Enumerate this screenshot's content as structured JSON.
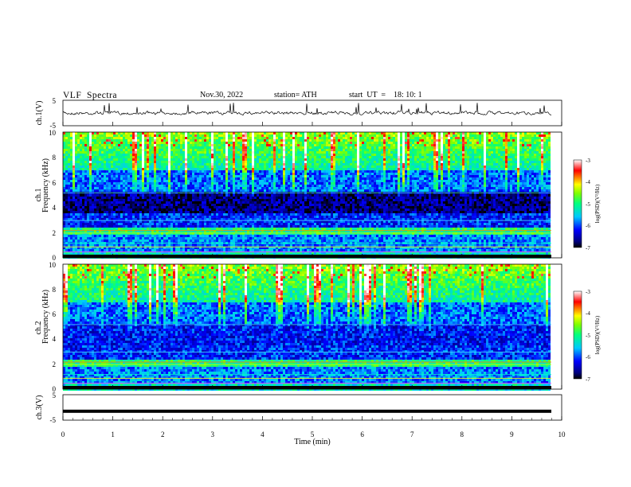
{
  "header": {
    "title": "VLF  Spectra",
    "date": "Nov.30, 2022",
    "station": "station= ATH",
    "start": "start  UT  =    18: 10: 1"
  },
  "chart_data": [
    {
      "type": "line",
      "name": "ch1-waveform",
      "ylabel": "ch.1(V)",
      "ylim": [
        -5,
        5
      ],
      "yticks": [
        "5",
        "-5"
      ],
      "xlim": [
        0,
        10
      ]
    },
    {
      "type": "heatmap",
      "name": "ch1-spectrogram",
      "ylabel_line1": "ch.1",
      "ylabel_line2": "Frequency (kHz)",
      "ylim": [
        0,
        10
      ],
      "yticks": [
        "0",
        "2",
        "4",
        "6",
        "8",
        "10"
      ],
      "xlim": [
        0,
        10
      ],
      "colorbar": {
        "label": "log(PSD)(V²/Hz)",
        "ticks": [
          "-3",
          "-4",
          "-5",
          "-6",
          "-7"
        ],
        "range": [
          -7,
          -3
        ]
      }
    },
    {
      "type": "heatmap",
      "name": "ch2-spectrogram",
      "ylabel_line1": "ch.2",
      "ylabel_line2": "Frequency (kHz)",
      "ylim": [
        0,
        10
      ],
      "yticks": [
        "0",
        "2",
        "4",
        "6",
        "8",
        "10"
      ],
      "xlim": [
        0,
        10
      ],
      "colorbar": {
        "label": "log(PSD)(V²/Hz)",
        "ticks": [
          "-3",
          "-4",
          "-5",
          "-6",
          "-7"
        ],
        "range": [
          -7,
          -3
        ]
      }
    },
    {
      "type": "line",
      "name": "ch3-waveform",
      "ylabel": "ch.3(V)",
      "ylim": [
        -5,
        5
      ],
      "yticks": [
        "5",
        "-5"
      ],
      "xlim": [
        0,
        10
      ],
      "level": -1.5
    }
  ],
  "xaxis": {
    "label": "Time  (min)",
    "ticks": [
      "0",
      "1",
      "2",
      "3",
      "4",
      "5",
      "6",
      "7",
      "8",
      "9",
      "10"
    ]
  }
}
